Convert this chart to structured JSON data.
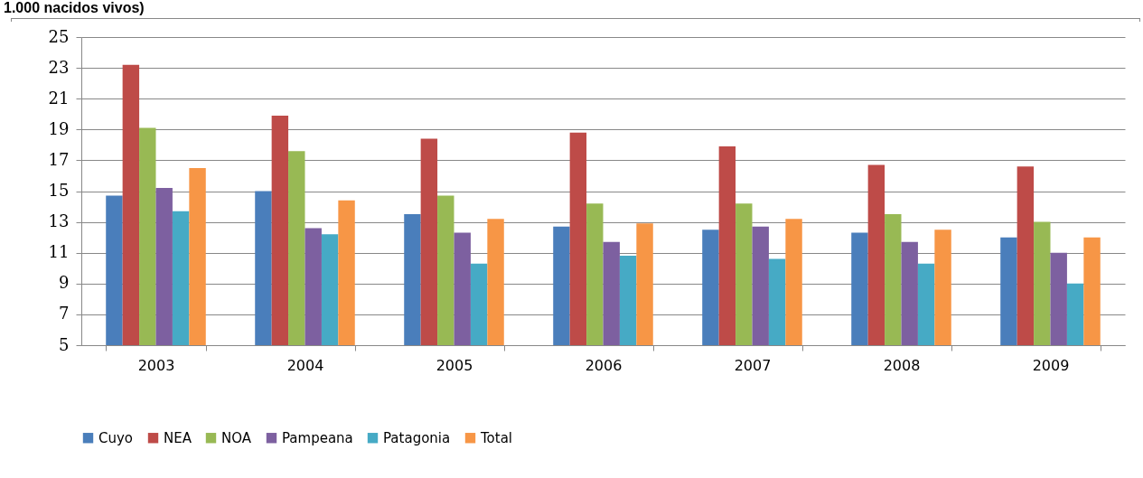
{
  "chart_data": {
    "type": "bar",
    "title": "1.000 nacidos vivos)",
    "categories": [
      "2003",
      "2004",
      "2005",
      "2006",
      "2007",
      "2008",
      "2009"
    ],
    "series": [
      {
        "name": "Cuyo",
        "color": "#4a7ebb",
        "values": [
          14.7,
          15.0,
          13.5,
          12.7,
          12.5,
          12.3,
          12.0
        ]
      },
      {
        "name": "NEA",
        "color": "#be4b48",
        "values": [
          23.2,
          19.9,
          18.4,
          18.8,
          17.9,
          16.7,
          16.6
        ]
      },
      {
        "name": "NOA",
        "color": "#98b954",
        "values": [
          19.1,
          17.6,
          14.7,
          14.2,
          14.2,
          13.5,
          13.0
        ]
      },
      {
        "name": "Pampeana",
        "color": "#7d60a0",
        "values": [
          15.2,
          12.6,
          12.3,
          11.7,
          12.7,
          11.7,
          11.0
        ]
      },
      {
        "name": "Patagonia",
        "color": "#46aac5",
        "values": [
          13.7,
          12.2,
          10.3,
          10.8,
          10.6,
          10.3,
          9.0
        ]
      },
      {
        "name": "Total",
        "color": "#f79646",
        "values": [
          16.5,
          14.4,
          13.2,
          12.9,
          13.2,
          12.5,
          12.0
        ]
      }
    ],
    "ylim": [
      5,
      25
    ],
    "yticks": [
      5,
      7,
      9,
      11,
      13,
      15,
      17,
      19,
      21,
      23,
      25
    ],
    "grid": "y",
    "legend": "bottom"
  }
}
